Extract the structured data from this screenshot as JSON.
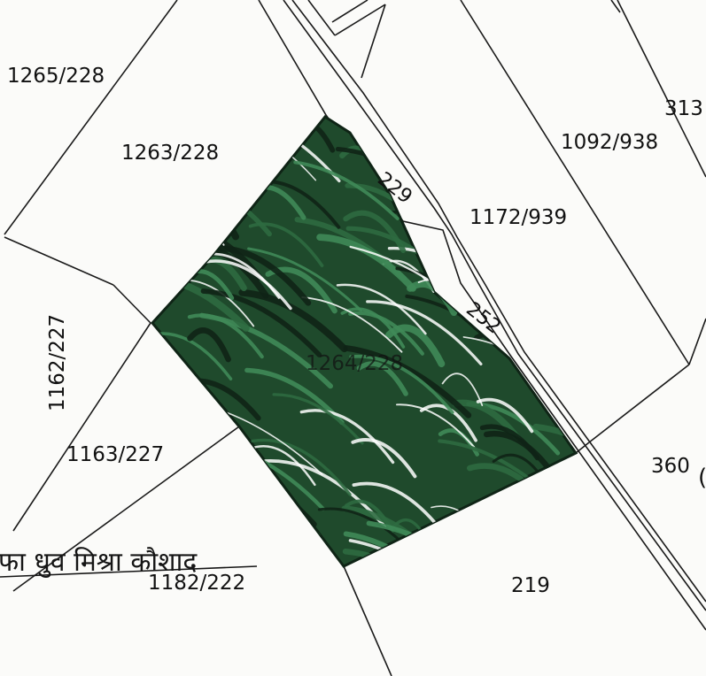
{
  "map": {
    "highlight_color": "#1f4a2c",
    "highlight_dark": "#0f2416",
    "highlight_light": "#3f8a58",
    "line_color": "#1a1a1a",
    "background": "#fbfbf9"
  },
  "parcels": {
    "p1265": "1265/228",
    "p1263": "1263/228",
    "p1092": "1092/938",
    "p313": "313",
    "p1172": "1172/939",
    "p1162": "1162/227",
    "p1264": "1264/228",
    "p1163": "1163/227",
    "p360": "360",
    "p1182": "1182/222",
    "p219": "219"
  },
  "roads": {
    "r229": "229",
    "r252": "252"
  },
  "handwritten_note": "फा धुव मिश्रा कौशाद"
}
